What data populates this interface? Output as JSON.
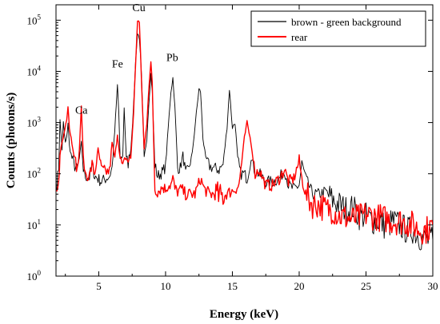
{
  "chart_data": {
    "type": "line",
    "xlabel": "Energy (keV)",
    "ylabel": "Counts (photons/s)",
    "xlim": [
      1.8,
      30
    ],
    "ylim": [
      1,
      200000
    ],
    "y_scale": "log",
    "grid": false,
    "legend_position": "top-right",
    "x_ticks": [
      "5",
      "10",
      "15",
      "20",
      "25",
      "30"
    ],
    "y_ticks": [
      {
        "base": "10",
        "exp": "0"
      },
      {
        "base": "10",
        "exp": "1"
      },
      {
        "base": "10",
        "exp": "2"
      },
      {
        "base": "10",
        "exp": "3"
      },
      {
        "base": "10",
        "exp": "4"
      },
      {
        "base": "10",
        "exp": "5"
      }
    ],
    "annotations": [
      {
        "text": "Ca",
        "x": 3.7,
        "y": 1500
      },
      {
        "text": "Fe",
        "x": 6.4,
        "y": 12000
      },
      {
        "text": "Cu",
        "x": 8.0,
        "y": 150000
      },
      {
        "text": "Pb",
        "x": 10.5,
        "y": 16000
      }
    ],
    "series": [
      {
        "name": "brown - green background",
        "color": "#000000",
        "x": [
          1.85,
          2.0,
          2.1,
          2.25,
          2.35,
          2.5,
          2.6,
          2.7,
          2.8,
          3.0,
          3.2,
          3.4,
          3.55,
          3.7,
          3.85,
          4.0,
          4.3,
          4.5,
          4.7,
          4.95,
          5.2,
          5.5,
          5.8,
          6.0,
          6.2,
          6.3,
          6.4,
          6.5,
          6.6,
          6.8,
          6.9,
          7.06,
          7.2,
          7.4,
          7.6,
          7.75,
          7.9,
          8.04,
          8.2,
          8.4,
          8.6,
          8.75,
          8.9,
          9.0,
          9.2,
          9.4,
          9.6,
          9.8,
          10.0,
          10.2,
          10.4,
          10.55,
          10.7,
          10.9,
          11.1,
          11.3,
          11.5,
          11.7,
          12.0,
          12.3,
          12.5,
          12.62,
          12.8,
          13.0,
          13.3,
          13.6,
          14.0,
          14.3,
          14.6,
          14.78,
          15.0,
          15.2,
          15.4,
          15.6,
          15.9,
          16.1,
          16.4,
          16.7,
          17.0,
          17.5,
          18.0,
          18.5,
          18.9,
          19.2,
          19.6,
          20.0,
          20.2,
          20.5,
          21.0,
          21.5,
          22.0,
          22.5,
          23.0,
          23.5,
          24.0,
          24.5,
          25.0,
          25.5,
          26.0,
          26.5,
          27.0,
          27.5,
          28.0,
          28.5,
          29.0,
          29.5,
          30.0
        ],
        "y": [
          60,
          130,
          1100,
          300,
          1000,
          400,
          500,
          1000,
          350,
          200,
          140,
          120,
          200,
          400,
          120,
          90,
          85,
          150,
          90,
          80,
          70,
          80,
          90,
          130,
          700,
          2000,
          5500,
          1500,
          200,
          220,
          2000,
          200,
          160,
          300,
          2000,
          15000,
          55000,
          45000,
          8000,
          200,
          500,
          2500,
          9000,
          4000,
          150,
          90,
          100,
          110,
          140,
          800,
          4000,
          7500,
          2000,
          130,
          130,
          250,
          100,
          120,
          250,
          1500,
          4500,
          4000,
          500,
          200,
          140,
          130,
          120,
          150,
          800,
          4500,
          800,
          1000,
          200,
          100,
          100,
          80,
          200,
          110,
          100,
          70,
          70,
          80,
          120,
          60,
          50,
          60,
          160,
          80,
          40,
          40,
          45,
          30,
          25,
          20,
          22,
          15,
          15,
          12,
          12,
          9,
          12,
          10,
          8,
          8,
          6,
          5,
          5
        ]
      },
      {
        "name": "rear",
        "color": "#ff0000",
        "x": [
          1.85,
          2.0,
          2.1,
          2.25,
          2.4,
          2.6,
          2.7,
          2.8,
          3.0,
          3.2,
          3.4,
          3.55,
          3.7,
          3.85,
          4.0,
          4.3,
          4.5,
          4.7,
          4.95,
          5.2,
          5.5,
          5.8,
          6.0,
          6.2,
          6.4,
          6.6,
          6.8,
          7.0,
          7.2,
          7.4,
          7.6,
          7.75,
          7.9,
          8.04,
          8.2,
          8.4,
          8.6,
          8.75,
          8.9,
          9.0,
          9.2,
          9.4,
          9.6,
          9.8,
          10.0,
          10.2,
          10.4,
          10.55,
          10.7,
          10.9,
          11.2,
          11.5,
          11.8,
          12.2,
          12.62,
          12.9,
          13.3,
          13.7,
          14.1,
          14.5,
          14.9,
          15.2,
          15.5,
          15.9,
          16.1,
          16.4,
          16.7,
          17.0,
          17.5,
          18.0,
          18.5,
          18.9,
          19.2,
          19.6,
          20.0,
          20.2,
          20.5,
          21.0,
          21.5,
          22.0,
          22.5,
          23.0,
          23.5,
          24.0,
          24.5,
          25.0,
          25.5,
          26.0,
          26.5,
          27.0,
          27.5,
          28.0,
          28.5,
          29.0,
          29.5,
          30.0
        ],
        "y": [
          40,
          60,
          250,
          400,
          600,
          1200,
          2200,
          800,
          400,
          200,
          120,
          300,
          2000,
          200,
          100,
          90,
          150,
          100,
          300,
          120,
          110,
          110,
          400,
          200,
          600,
          200,
          130,
          200,
          180,
          200,
          1500,
          12000,
          100000,
          90000,
          6000,
          300,
          1000,
          5000,
          15000,
          6000,
          50,
          45,
          50,
          55,
          50,
          60,
          60,
          80,
          50,
          45,
          50,
          40,
          40,
          40,
          80,
          50,
          40,
          40,
          35,
          40,
          45,
          50,
          60,
          500,
          1000,
          400,
          100,
          120,
          60,
          60,
          80,
          120,
          70,
          80,
          180,
          80,
          40,
          25,
          25,
          20,
          20,
          15,
          14,
          13,
          14,
          16,
          15,
          14,
          13,
          12,
          12,
          11,
          10,
          8,
          8,
          10
        ]
      }
    ]
  }
}
